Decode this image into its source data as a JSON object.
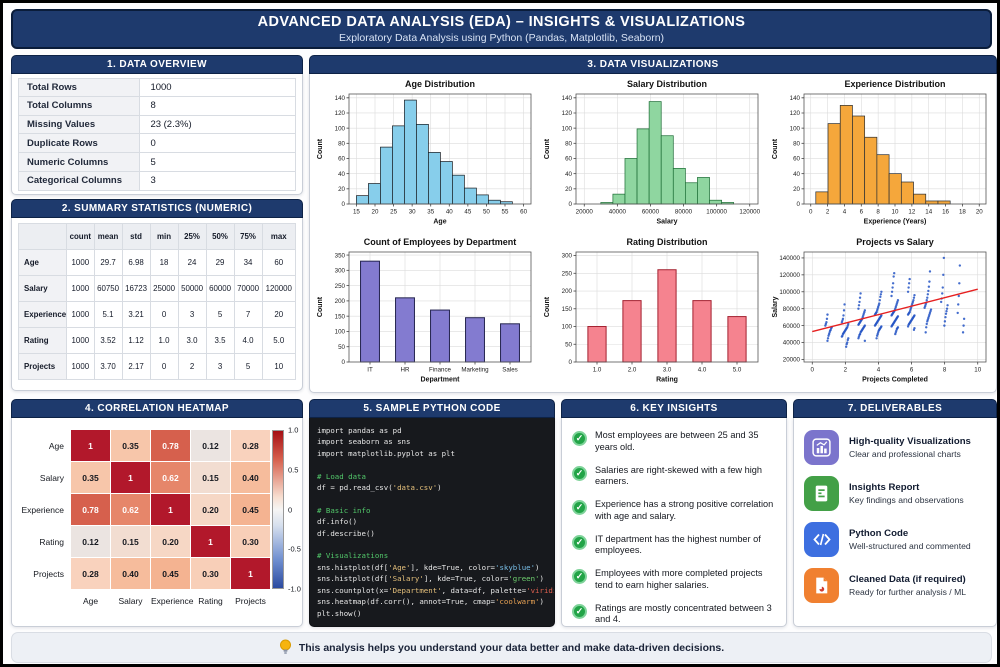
{
  "header": {
    "title": "ADVANCED DATA ANALYSIS (EDA) – INSIGHTS & VISUALIZATIONS",
    "subtitle": "Exploratory Data Analysis using Python (Pandas, Matplotlib, Seaborn)"
  },
  "panels": {
    "overview": {
      "title": "1. DATA OVERVIEW",
      "rows": [
        {
          "label": "Total Rows",
          "value": "1000"
        },
        {
          "label": "Total Columns",
          "value": "8"
        },
        {
          "label": "Missing Values",
          "value": "23 (2.3%)"
        },
        {
          "label": "Duplicate Rows",
          "value": "0"
        },
        {
          "label": "Numeric Columns",
          "value": "5"
        },
        {
          "label": "Categorical Columns",
          "value": "3"
        }
      ]
    },
    "summary": {
      "title": "2. SUMMARY STATISTICS (NUMERIC)",
      "columns": [
        "",
        "count",
        "mean",
        "std",
        "min",
        "25%",
        "50%",
        "75%",
        "max"
      ],
      "rows": [
        {
          "label": "Age",
          "values": [
            "1000",
            "29.7",
            "6.98",
            "18",
            "24",
            "29",
            "34",
            "60"
          ]
        },
        {
          "label": "Salary",
          "values": [
            "1000",
            "60750",
            "16723",
            "25000",
            "50000",
            "60000",
            "70000",
            "120000"
          ]
        },
        {
          "label": "Experience",
          "values": [
            "1000",
            "5.1",
            "3.21",
            "0",
            "3",
            "5",
            "7",
            "20"
          ]
        },
        {
          "label": "Rating",
          "values": [
            "1000",
            "3.52",
            "1.12",
            "1.0",
            "3.0",
            "3.5",
            "4.0",
            "5.0"
          ]
        },
        {
          "label": "Projects",
          "values": [
            "1000",
            "3.70",
            "2.17",
            "0",
            "2",
            "3",
            "5",
            "10"
          ]
        }
      ]
    },
    "visualizations": {
      "title": "3. DATA VISUALIZATIONS"
    },
    "heatmap": {
      "title": "4. CORRELATION HEATMAP",
      "labels": [
        "Age",
        "Salary",
        "Experience",
        "Rating",
        "Projects"
      ],
      "values": [
        [
          "1",
          "0.35",
          "0.78",
          "0.12",
          "0.28"
        ],
        [
          "0.35",
          "1",
          "0.62",
          "0.15",
          "0.40"
        ],
        [
          "0.78",
          "0.62",
          "1",
          "0.20",
          "0.45"
        ],
        [
          "0.12",
          "0.15",
          "0.20",
          "1",
          "0.30"
        ],
        [
          "0.28",
          "0.40",
          "0.45",
          "0.30",
          "1"
        ]
      ],
      "colors": [
        [
          "#b2182b",
          "#f7c6aa",
          "#d6604d",
          "#ebe4e1",
          "#f9d2bd"
        ],
        [
          "#f7c6aa",
          "#b2182b",
          "#e6866a",
          "#f2ddd1",
          "#f6bc9c"
        ],
        [
          "#d6604d",
          "#e6866a",
          "#b2182b",
          "#f6d7c5",
          "#f4b391"
        ],
        [
          "#ebe4e1",
          "#f2ddd1",
          "#f6d7c5",
          "#b2182b",
          "#f8cfb8"
        ],
        [
          "#f9d2bd",
          "#f6bc9c",
          "#f4b391",
          "#f8cfb8",
          "#b2182b"
        ]
      ],
      "colorbar_ticks": [
        "1.0",
        "0.5",
        "0",
        "-0.5",
        "-1.0"
      ]
    },
    "code": {
      "title": "5. SAMPLE PYTHON CODE",
      "lines": [
        [
          [
            "import pandas as pd",
            "plain"
          ]
        ],
        [
          [
            "import seaborn as sns",
            "plain"
          ]
        ],
        [
          [
            "import matplotlib.pyplot as plt",
            "plain"
          ]
        ],
        [],
        [
          [
            "# Load data",
            "comment"
          ]
        ],
        [
          [
            "df = pd.read_csv(",
            "plain"
          ],
          [
            "'data.csv'",
            "string"
          ],
          [
            ")",
            "plain"
          ]
        ],
        [],
        [
          [
            "# Basic info",
            "comment"
          ]
        ],
        [
          [
            "df.info()",
            "plain"
          ]
        ],
        [
          [
            "df.describe()",
            "plain"
          ]
        ],
        [],
        [
          [
            "# Visualizations",
            "comment"
          ]
        ],
        [
          [
            "sns.histplot(df[",
            "plain"
          ],
          [
            "'Age'",
            "string"
          ],
          [
            "], kde=True, color=",
            "plain"
          ],
          [
            "'skyblue'",
            "skyblue"
          ],
          [
            ")",
            "plain"
          ]
        ],
        [
          [
            "sns.histplot(df[",
            "plain"
          ],
          [
            "'Salary'",
            "string"
          ],
          [
            "], kde=True, color=",
            "plain"
          ],
          [
            "'green'",
            "green"
          ],
          [
            ")",
            "plain"
          ]
        ],
        [
          [
            "sns.countplot(x=",
            "plain"
          ],
          [
            "'Department'",
            "string"
          ],
          [
            ", data=df, palette=",
            "plain"
          ],
          [
            "'viridis'",
            "red"
          ],
          [
            ")",
            "plain"
          ]
        ],
        [
          [
            "sns.heatmap(df.corr(), annot=True, cmap=",
            "plain"
          ],
          [
            "'coolwarm'",
            "orange"
          ],
          [
            ")",
            "plain"
          ]
        ],
        [
          [
            "plt.show()",
            "plain"
          ]
        ]
      ]
    },
    "insights": {
      "title": "6. KEY INSIGHTS",
      "items": [
        "Most employees are between 25 and 35 years old.",
        "Salaries are right-skewed with a few high earners.",
        "Experience has a strong positive correlation with age and salary.",
        "IT department has the highest number of employees.",
        "Employees with more completed projects tend to earn higher salaries.",
        "Ratings are mostly concentrated between 3 and 4."
      ]
    },
    "deliverables": {
      "title": "7. DELIVERABLES",
      "items": [
        {
          "icon": "chart",
          "color": "#7b74cc",
          "title": "High-quality Visualizations",
          "subtitle": "Clear and professional charts"
        },
        {
          "icon": "report",
          "color": "#43a047",
          "title": "Insights Report",
          "subtitle": "Key findings and observations"
        },
        {
          "icon": "code",
          "color": "#3d6fe0",
          "title": "Python Code",
          "subtitle": "Well-structured and commented"
        },
        {
          "icon": "data",
          "color": "#f08030",
          "title": "Cleaned Data (if required)",
          "subtitle": "Ready for further analysis / ML"
        }
      ]
    }
  },
  "footer": {
    "text": "This analysis helps you understand your data better and make data-driven decisions."
  },
  "chart_data": [
    {
      "type": "histogram",
      "title": "Age Distribution",
      "xlabel": "Age",
      "ylabel": "Count",
      "bin_start": 15,
      "bin_width": 3.23,
      "values": [
        11,
        27,
        75,
        103,
        137,
        105,
        68,
        56,
        38,
        21,
        12,
        5,
        3
      ],
      "xlim": [
        13,
        62
      ],
      "ylim": [
        0,
        145
      ],
      "xticks": [
        15,
        20,
        25,
        30,
        35,
        40,
        45,
        50,
        55,
        60
      ],
      "yticks": [
        0,
        20,
        40,
        60,
        80,
        100,
        120,
        140
      ],
      "fill": "#87ceeb",
      "edge": "#16191d",
      "grid": true
    },
    {
      "type": "histogram",
      "title": "Salary Distribution",
      "xlabel": "Salary",
      "ylabel": "Count",
      "bin_start": 30000,
      "bin_width": 7300,
      "values": [
        2,
        13,
        60,
        99,
        135,
        90,
        47,
        28,
        35,
        5,
        2
      ],
      "xlim": [
        15000,
        125000
      ],
      "ylim": [
        0,
        145
      ],
      "xticks": [
        20000,
        40000,
        60000,
        80000,
        100000,
        120000
      ],
      "yticks": [
        0,
        20,
        40,
        60,
        80,
        100,
        120,
        140
      ],
      "fill": "#8fd6a0",
      "edge": "#1a6b33",
      "grid": true
    },
    {
      "type": "histogram",
      "title": "Experience Distribution",
      "xlabel": "Experience (Years)",
      "ylabel": "Count",
      "bin_start": 0.6,
      "bin_width": 1.45,
      "values": [
        16,
        106,
        130,
        116,
        88,
        65,
        40,
        29,
        13,
        4,
        4
      ],
      "xlim": [
        -0.8,
        20.8
      ],
      "ylim": [
        0,
        145
      ],
      "xticks": [
        0,
        2,
        4,
        6,
        8,
        10,
        12,
        14,
        16,
        18,
        20
      ],
      "yticks": [
        0,
        20,
        40,
        60,
        80,
        100,
        120,
        140
      ],
      "fill": "#f5a73b",
      "edge": "#2a2e33",
      "grid": true
    },
    {
      "type": "bar",
      "title": "Count of Employees by Department",
      "xlabel": "Department",
      "ylabel": "Count",
      "categories": [
        "IT",
        "HR",
        "Finance",
        "Marketing",
        "Sales"
      ],
      "values": [
        330,
        210,
        170,
        145,
        125
      ],
      "ylim": [
        0,
        360
      ],
      "yticks": [
        0,
        50,
        100,
        150,
        200,
        250,
        300,
        350
      ],
      "fill": "#837bd0",
      "edge": "#23234f",
      "bar_frac": 0.52,
      "grid": true
    },
    {
      "type": "bar",
      "title": "Rating Distribution",
      "xlabel": "Rating",
      "ylabel": "Count",
      "categories": [
        "1.0",
        "2.0",
        "3.0",
        "4.0",
        "5.0"
      ],
      "values": [
        100,
        173,
        260,
        173,
        128
      ],
      "ylim": [
        0,
        310
      ],
      "yticks": [
        0,
        50,
        100,
        150,
        200,
        250,
        300
      ],
      "fill": "#f5838f",
      "edge": "#a3202f",
      "bar_frac": 0.5,
      "grid": true
    },
    {
      "type": "scatter",
      "title": "Projects vs Salary",
      "xlabel": "Projects Completed",
      "ylabel": "Salary",
      "xlim": [
        -0.5,
        10.5
      ],
      "ylim": [
        17000,
        147000
      ],
      "xticks": [
        0,
        2,
        4,
        6,
        8,
        10
      ],
      "yticks": [
        20000,
        40000,
        60000,
        80000,
        100000,
        120000,
        140000
      ],
      "point_color": "#2353c4",
      "trend_color": "#e62020",
      "trend": {
        "x1": 0,
        "y1": 53000,
        "x2": 10,
        "y2": 103000
      },
      "groups": [
        {
          "x": 1,
          "salaries": [
            42000,
            45000,
            48000,
            50000,
            52000,
            54000,
            55000,
            57000,
            58000,
            60000,
            62000,
            64000,
            68000,
            73000
          ]
        },
        {
          "x": 2,
          "salaries": [
            35000,
            38000,
            40000,
            43000,
            45000,
            47000,
            48000,
            50000,
            51000,
            52000,
            53000,
            54000,
            55000,
            56000,
            57000,
            58000,
            60000,
            62000,
            64000,
            66000,
            68000,
            72000,
            78000,
            85000
          ]
        },
        {
          "x": 3,
          "salaries": [
            42000,
            45000,
            47000,
            49000,
            50000,
            52000,
            53000,
            54000,
            55000,
            56000,
            57000,
            58000,
            59000,
            60000,
            61000,
            62000,
            63000,
            64000,
            65000,
            66000,
            67000,
            68000,
            70000,
            72000,
            74000,
            76000,
            78000,
            80000,
            84000,
            88000,
            93000,
            98000
          ]
        },
        {
          "x": 4,
          "salaries": [
            45000,
            48000,
            50000,
            52000,
            54000,
            55000,
            56000,
            57000,
            58000,
            59000,
            60000,
            61000,
            62000,
            63000,
            64000,
            65000,
            66000,
            67000,
            68000,
            69000,
            70000,
            71000,
            72000,
            73000,
            74000,
            75000,
            76000,
            78000,
            80000,
            82000,
            84000,
            86000,
            90000,
            94000,
            97000,
            100000
          ]
        },
        {
          "x": 5,
          "salaries": [
            50000,
            52000,
            54000,
            56000,
            57000,
            58000,
            59000,
            60000,
            61000,
            62000,
            63000,
            64000,
            65000,
            66000,
            67000,
            68000,
            69000,
            70000,
            71000,
            72000,
            73000,
            74000,
            75000,
            76000,
            77000,
            78000,
            80000,
            82000,
            84000,
            86000,
            88000,
            90000,
            95000,
            100000,
            105000,
            110000,
            118000,
            122000
          ]
        },
        {
          "x": 6,
          "salaries": [
            55000,
            57000,
            59000,
            61000,
            62000,
            63000,
            64000,
            65000,
            66000,
            67000,
            68000,
            69000,
            70000,
            71000,
            72000,
            73000,
            74000,
            75000,
            76000,
            78000,
            80000,
            82000,
            84000,
            86000,
            88000,
            90000,
            93000,
            96000,
            100000,
            105000,
            110000,
            115000
          ]
        },
        {
          "x": 7,
          "salaries": [
            52000,
            58000,
            62000,
            65000,
            67000,
            69000,
            71000,
            73000,
            75000,
            77000,
            79000,
            81000,
            83000,
            85000,
            87000,
            90000,
            93000,
            97000,
            101000,
            106000,
            112000,
            124000
          ]
        },
        {
          "x": 8,
          "salaries": [
            60000,
            65000,
            70000,
            74000,
            77000,
            80000,
            84000,
            88000,
            92000,
            98000,
            105000,
            120000,
            140000
          ]
        },
        {
          "x": 9,
          "salaries": [
            52000,
            60000,
            68000,
            75000,
            85000,
            95000,
            110000,
            131000
          ]
        }
      ]
    }
  ]
}
